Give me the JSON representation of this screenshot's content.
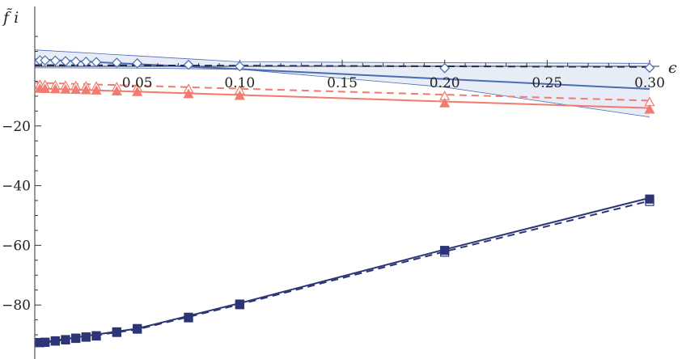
{
  "chart_data": {
    "type": "line",
    "xlabel": "ϵ",
    "ylabel": "f̃ i",
    "xlim": [
      0,
      0.3
    ],
    "ylim": [
      -94,
      14
    ],
    "x_ticks": [
      0.05,
      0.1,
      0.15,
      0.2,
      0.25,
      0.3
    ],
    "x_tick_labels": [
      "0.05",
      "0.10",
      "0.15",
      "0.20",
      "0.25",
      "0.30"
    ],
    "y_ticks": [
      -20,
      -40,
      -60,
      -80
    ],
    "y_tick_labels": [
      "−20",
      "−40",
      "−60",
      "−80"
    ],
    "grid": false,
    "series": [
      {
        "marker": "diamond-open",
        "color": "#4a6cb3",
        "x": [
          0.0025,
          0.005,
          0.01,
          0.015,
          0.02,
          0.025,
          0.03,
          0.04,
          0.05,
          0.075,
          0.1,
          0.2,
          0.3
        ],
        "y": [
          2.0,
          2.0,
          1.9,
          1.7,
          1.6,
          1.5,
          1.4,
          1.2,
          1.0,
          0.5,
          0.0,
          -0.6,
          -0.5
        ],
        "fit_solid": [
          [
            0,
            2.4
          ],
          [
            0.3,
            -7.6
          ]
        ],
        "fit_dashed": [
          [
            0,
            0.4
          ],
          [
            0.3,
            -0.2
          ]
        ],
        "band_upper": [
          [
            0,
            5.5
          ],
          [
            0.05,
            3.5
          ],
          [
            0.1,
            1.5
          ],
          [
            0.2,
            1.2
          ],
          [
            0.3,
            1.0
          ]
        ],
        "band_lower": [
          [
            0,
            -0.5
          ],
          [
            0.05,
            -0.6
          ],
          [
            0.1,
            -1.0
          ],
          [
            0.2,
            -7.0
          ],
          [
            0.3,
            -17.0
          ]
        ]
      },
      {
        "marker": "triangle",
        "color": "#f07b6e",
        "x": [
          0.0025,
          0.005,
          0.01,
          0.015,
          0.02,
          0.025,
          0.03,
          0.04,
          0.05,
          0.075,
          0.1,
          0.2,
          0.3
        ],
        "y_filled": [
          -7.5,
          -7.6,
          -7.7,
          -7.8,
          -7.9,
          -8.0,
          -8.1,
          -8.4,
          -8.6,
          -9.3,
          -9.9,
          -12.4,
          -14.5
        ],
        "y_open": [
          -6.2,
          -6.3,
          -6.4,
          -6.5,
          -6.6,
          -6.7,
          -6.8,
          -7.0,
          -7.2,
          -7.6,
          -8.1,
          -10.0,
          -12.0
        ],
        "fit_solid": [
          [
            0,
            -7.4
          ],
          [
            0.3,
            -14.0
          ]
        ],
        "fit_dashed": [
          [
            0,
            -5.5
          ],
          [
            0.3,
            -11.5
          ]
        ]
      },
      {
        "marker": "square",
        "color": "#2d3576",
        "x": [
          0.0025,
          0.005,
          0.01,
          0.015,
          0.02,
          0.025,
          0.03,
          0.04,
          0.05,
          0.075,
          0.1,
          0.2,
          0.3
        ],
        "y_filled": [
          -92.6,
          -92.5,
          -92.0,
          -91.6,
          -91.1,
          -90.7,
          -90.3,
          -89.0,
          -87.9,
          -84.1,
          -79.7,
          -61.7,
          -44.5
        ],
        "y_open": [
          -92.6,
          -92.5,
          -92.1,
          -91.7,
          -91.2,
          -90.8,
          -90.4,
          -89.2,
          -88.1,
          -84.3,
          -79.9,
          -62.3,
          -45.3
        ],
        "fit_solid": [
          [
            0,
            -92.9
          ],
          [
            0.05,
            -87.9
          ],
          [
            0.1,
            -79.4
          ],
          [
            0.2,
            -61.4
          ],
          [
            0.3,
            -44.1
          ]
        ],
        "fit_dashed": [
          [
            0,
            -93.1
          ],
          [
            0.05,
            -88.2
          ],
          [
            0.1,
            -79.8
          ],
          [
            0.2,
            -62.1
          ],
          [
            0.3,
            -45.1
          ]
        ]
      }
    ]
  }
}
